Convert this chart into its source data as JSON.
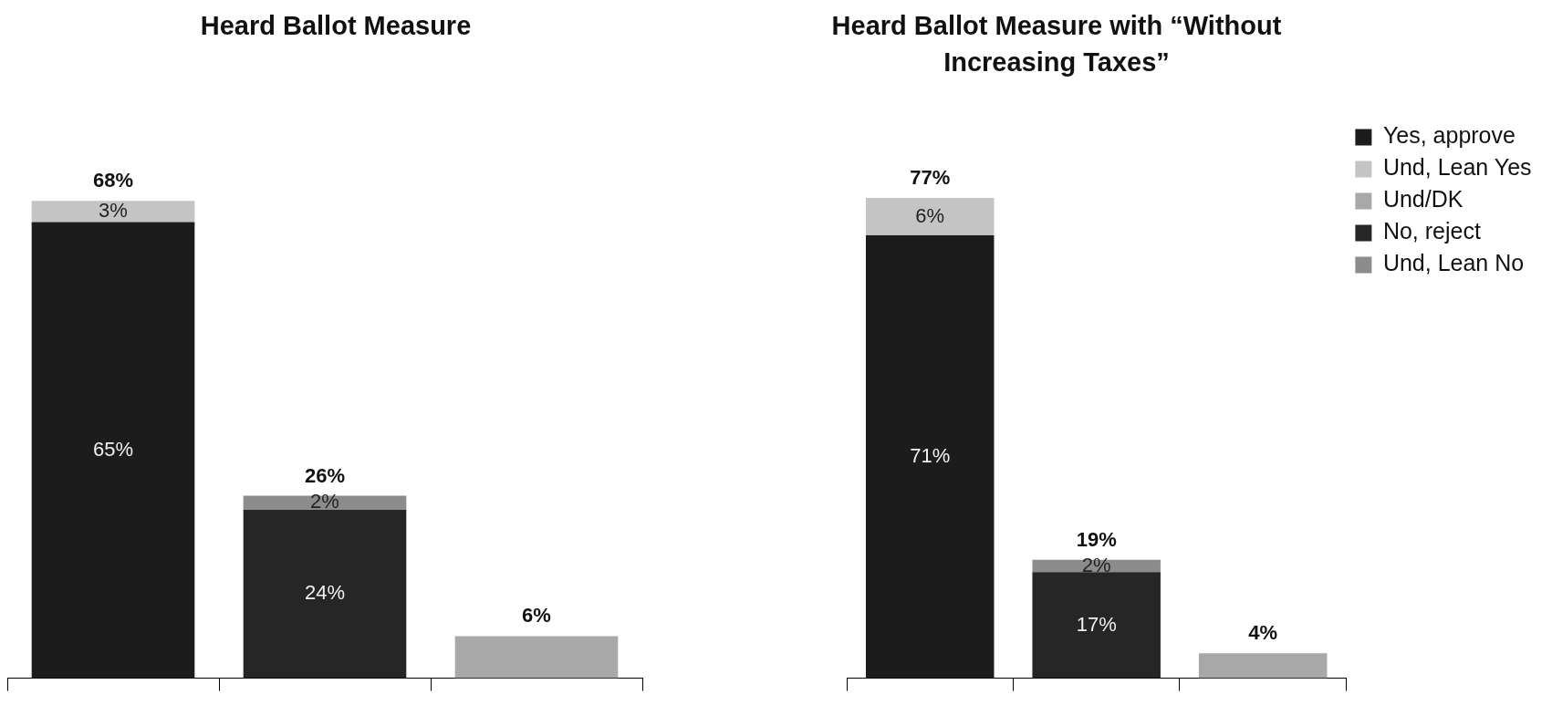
{
  "chart_data": [
    {
      "type": "bar",
      "title": "Heard Ballot Measure",
      "categories": [
        null,
        null,
        null
      ],
      "stacked": true,
      "data_labels": false,
      "legend": false,
      "grid": false,
      "series": [
        {
          "color": "#1c1c1c",
          "values": [
            65,
            null,
            null
          ],
          "value_labels": [
            "65%",
            null,
            null
          ]
        },
        {
          "color": "#c4c4c4",
          "values": [
            3,
            null,
            null
          ],
          "value_labels": [
            "3%",
            null,
            null
          ]
        },
        {
          "color": "#a8a8a8",
          "values": [
            null,
            null,
            6
          ],
          "value_labels": [
            null,
            null,
            null
          ]
        },
        {
          "color": "#262626",
          "values": [
            null,
            24,
            null
          ],
          "value_labels": [
            null,
            "24%",
            null
          ]
        },
        {
          "color": "#8c8c8c",
          "values": [
            null,
            2,
            null
          ],
          "value_labels": [
            null,
            "2%",
            null
          ]
        }
      ],
      "totals": [
        "68%",
        "26%",
        "6%"
      ]
    },
    {
      "type": "bar",
      "title": "Heard Ballot Measure with “Without Increasing Taxes”",
      "categories": [
        null,
        null,
        null
      ],
      "stacked": true,
      "data_labels": false,
      "legend": "top right",
      "grid": false,
      "series": [
        {
          "name": "Yes, approve",
          "color": "#1c1c1c",
          "values": [
            71,
            null,
            null
          ],
          "value_labels": [
            "71%",
            null,
            null
          ]
        },
        {
          "name": "Und, Lean Yes",
          "color": "#c4c4c4",
          "values": [
            6,
            null,
            null
          ],
          "value_labels": [
            "6%",
            null,
            null
          ]
        },
        {
          "name": "Und/DK",
          "color": "#a8a8a8",
          "values": [
            null,
            null,
            4
          ],
          "value_labels": [
            null,
            null,
            null
          ]
        },
        {
          "name": "No, reject",
          "color": "#262626",
          "values": [
            null,
            17,
            null
          ],
          "value_labels": [
            null,
            "17%",
            null
          ]
        },
        {
          "name": "Und, Lean No",
          "color": "#8c8c8c",
          "values": [
            null,
            2,
            null
          ],
          "value_labels": [
            null,
            "2%",
            null
          ]
        }
      ],
      "totals": [
        "77%",
        "19%",
        "4%"
      ]
    }
  ]
}
